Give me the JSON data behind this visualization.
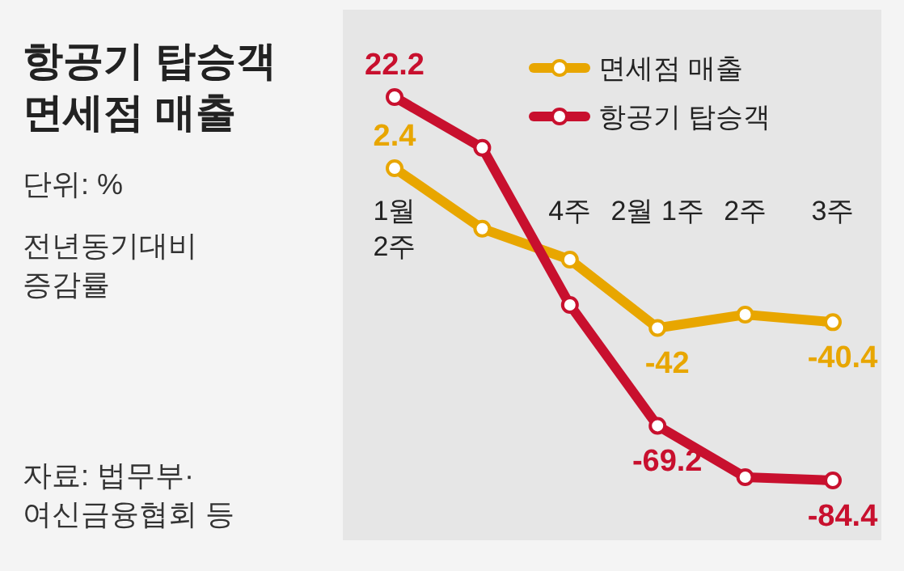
{
  "chart_data": {
    "type": "line",
    "title": "항공기 탑승객\n면세점 매출",
    "annotations": [
      "단위: %",
      "전년동기대비\n증감률",
      "자료: 법무부·\n여신금융협회 등"
    ],
    "categories": [
      "1월\n2주",
      null,
      "4주",
      "2월 1주",
      "2주",
      "3주"
    ],
    "series": [
      {
        "name": "면세점 매출",
        "color": "#e8a600",
        "values": [
          2.4,
          -14.4,
          -23,
          -42,
          -38.3,
          -40.4
        ],
        "value_labels": [
          "2.4",
          null,
          null,
          "-42",
          null,
          "-40.4"
        ]
      },
      {
        "name": "항공기 탑승객",
        "color": "#c8102e",
        "values": [
          22.2,
          8.1,
          -35.6,
          -69.2,
          -83.5,
          -84.4
        ],
        "value_labels": [
          "22.2",
          null,
          null,
          "-69.2",
          null,
          "-84.4"
        ]
      }
    ],
    "marker": "circle",
    "legend": "top right",
    "grid": false
  }
}
